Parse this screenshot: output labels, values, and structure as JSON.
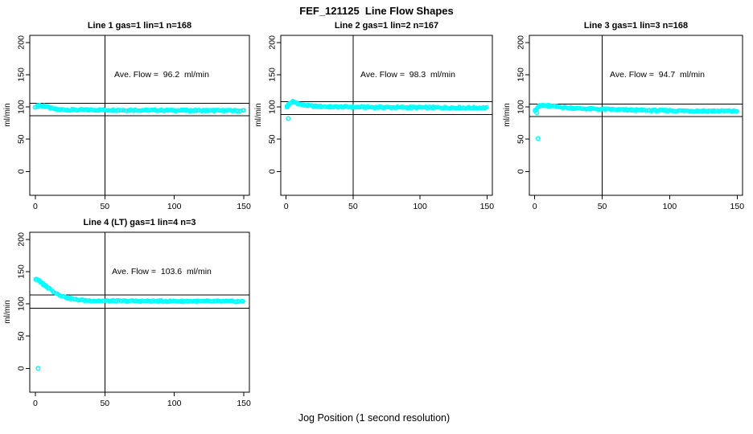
{
  "title": "FEF_121125  Line Flow Shapes",
  "xlabel": "Jog Position (1 second resolution)",
  "point_color": "#00FFFF",
  "axis_color": "#000000",
  "chart_data": [
    {
      "type": "scatter",
      "title": "Line 1 gas=1 lin=1 n=168",
      "annotation": "Ave. Flow =  96.2  ml/min",
      "ave_flow_ml_min": 96.2,
      "n": 168,
      "ylabel": "ml/min",
      "x_ticks": [
        0,
        50,
        100,
        150
      ],
      "y_ticks": [
        0,
        50,
        100,
        150,
        200
      ],
      "xlim": [
        0,
        150
      ],
      "ylim": [
        0,
        200
      ],
      "ref_vline_x": 50,
      "upper_limit": 105.8,
      "lower_limit": 86.6,
      "band_spread": 2.4,
      "shape_points": [
        [
          0.3,
          100.5
        ],
        [
          2,
          101.5
        ],
        [
          4,
          102
        ],
        [
          6,
          101.5
        ],
        [
          8,
          100.5
        ],
        [
          10,
          99
        ],
        [
          13,
          97
        ],
        [
          16,
          96
        ],
        [
          20,
          95.7
        ],
        [
          30,
          95.5
        ],
        [
          50,
          95.3
        ],
        [
          80,
          95.0
        ],
        [
          110,
          94.6
        ],
        [
          150,
          94.2
        ]
      ],
      "outliers": []
    },
    {
      "type": "scatter",
      "title": "Line 2 gas=1 lin=2 n=167",
      "annotation": "Ave. Flow =  98.3  ml/min",
      "ave_flow_ml_min": 98.3,
      "n": 167,
      "ylabel": "ml/min",
      "x_ticks": [
        0,
        50,
        100,
        150
      ],
      "y_ticks": [
        0,
        50,
        100,
        150,
        200
      ],
      "xlim": [
        0,
        150
      ],
      "ylim": [
        0,
        200
      ],
      "ref_vline_x": 50,
      "upper_limit": 108.1,
      "lower_limit": 88.5,
      "band_spread": 2.4,
      "shape_points": [
        [
          0.3,
          100
        ],
        [
          2,
          103.5
        ],
        [
          3,
          106
        ],
        [
          4,
          107.5
        ],
        [
          5,
          108.3
        ],
        [
          6,
          107.8
        ],
        [
          8,
          106
        ],
        [
          10,
          104.5
        ],
        [
          13,
          103
        ],
        [
          17,
          102
        ],
        [
          22,
          101
        ],
        [
          30,
          100.3
        ],
        [
          45,
          100
        ],
        [
          70,
          99.5
        ],
        [
          100,
          99.2
        ],
        [
          150,
          98.6
        ]
      ],
      "outliers": [
        [
          1.5,
          82
        ]
      ]
    },
    {
      "type": "scatter",
      "title": "Line 3 gas=1 lin=3 n=168",
      "annotation": "Ave. Flow =  94.7  ml/min",
      "ave_flow_ml_min": 94.7,
      "n": 168,
      "ylabel": "ml/min",
      "x_ticks": [
        0,
        50,
        100,
        150
      ],
      "y_ticks": [
        0,
        50,
        100,
        150,
        200
      ],
      "xlim": [
        0,
        150
      ],
      "ylim": [
        0,
        200
      ],
      "ref_vline_x": 50,
      "upper_limit": 104.2,
      "lower_limit": 85.2,
      "band_spread": 2.4,
      "shape_points": [
        [
          0.3,
          95
        ],
        [
          2,
          99.5
        ],
        [
          3,
          101
        ],
        [
          5,
          102.3
        ],
        [
          8,
          102.4
        ],
        [
          12,
          101.5
        ],
        [
          18,
          100
        ],
        [
          25,
          98.8
        ],
        [
          35,
          97.5
        ],
        [
          50,
          96.5
        ],
        [
          70,
          95.3
        ],
        [
          90,
          94.5
        ],
        [
          110,
          94
        ],
        [
          130,
          93.8
        ],
        [
          150,
          93.5
        ]
      ],
      "outliers": [
        [
          1.5,
          91
        ],
        [
          2.5,
          51
        ]
      ]
    },
    {
      "type": "scatter",
      "title": "Line 4 (LT) gas=1 lin=4 n=3",
      "annotation": "Ave. Flow =  103.6  ml/min",
      "ave_flow_ml_min": 103.6,
      "n": 3,
      "ylabel": "ml/min",
      "x_ticks": [
        0,
        50,
        100,
        150
      ],
      "y_ticks": [
        0,
        50,
        100,
        150,
        200
      ],
      "xlim": [
        0,
        150
      ],
      "ylim": [
        0,
        200
      ],
      "ref_vline_x": 50,
      "upper_limit": 114.0,
      "lower_limit": 93.2,
      "band_spread": 2.2,
      "shape_points": [
        [
          0.3,
          138
        ],
        [
          2,
          137.5
        ],
        [
          3,
          135.5
        ],
        [
          4,
          133.5
        ],
        [
          5,
          131.5
        ],
        [
          6,
          130
        ],
        [
          7,
          128.5
        ],
        [
          8,
          127
        ],
        [
          9,
          125.5
        ],
        [
          10,
          124
        ],
        [
          12,
          121
        ],
        [
          14,
          118
        ],
        [
          16,
          115.5
        ],
        [
          18,
          113.5
        ],
        [
          20,
          111.5
        ],
        [
          23,
          109.5
        ],
        [
          26,
          108
        ],
        [
          30,
          106.5
        ],
        [
          35,
          105.5
        ],
        [
          40,
          105
        ],
        [
          50,
          104.6
        ],
        [
          70,
          104.3
        ],
        [
          100,
          104.2
        ],
        [
          150,
          103.8
        ]
      ],
      "outliers": [
        [
          2,
          0
        ]
      ]
    }
  ]
}
